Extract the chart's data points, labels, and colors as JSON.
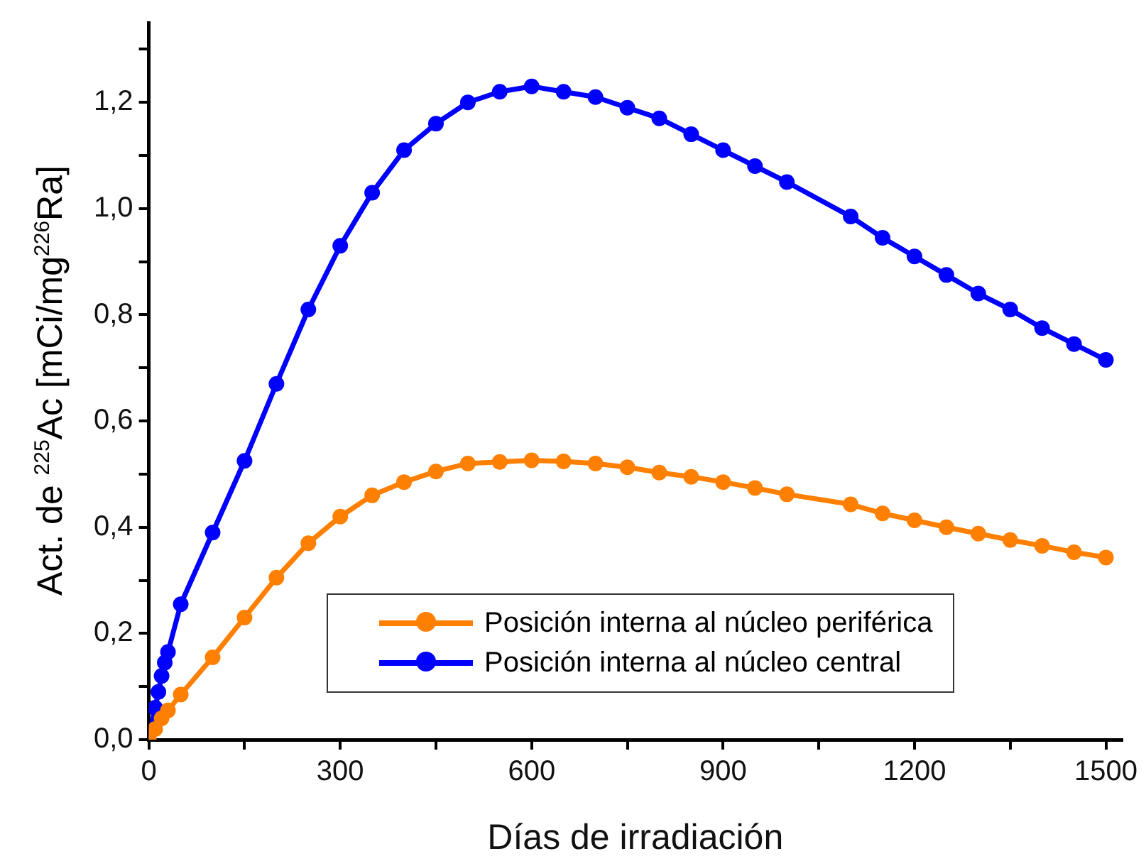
{
  "chart_data": {
    "type": "line",
    "xlabel": "Días de irradiación",
    "ylabel": "Act. de $^{225}$Ac [mCi/mg$^{226}$Ra]",
    "xlim": [
      0,
      1525
    ],
    "ylim": [
      0,
      1.35
    ],
    "xticks": [
      0,
      {
        "value": 150,
        "label": null
      },
      300,
      {
        "value": 450,
        "label": null
      },
      600,
      {
        "value": 750,
        "label": null
      },
      900,
      {
        "value": 1050,
        "label": null
      },
      1200,
      {
        "value": 1350,
        "label": null
      },
      1500
    ],
    "yticks": [
      {
        "value": 0,
        "label": "0,0"
      },
      {
        "value": 0.1,
        "label": null
      },
      {
        "value": 0.2,
        "label": "0,2"
      },
      {
        "value": 0.3,
        "label": null
      },
      {
        "value": 0.4,
        "label": "0,4"
      },
      {
        "value": 0.5,
        "label": null
      },
      {
        "value": 0.6,
        "label": "0,6"
      },
      {
        "value": 0.7,
        "label": null
      },
      {
        "value": 0.8,
        "label": "0,8"
      },
      {
        "value": 0.9,
        "label": null
      },
      {
        "value": 1.0,
        "label": "1,0"
      },
      {
        "value": 1.1,
        "label": null
      },
      {
        "value": 1.2,
        "label": "1,2"
      },
      {
        "value": 1.3,
        "label": null
      }
    ],
    "grid": false,
    "legend": "bottom right",
    "marker": "circle",
    "line_style": "solid",
    "series": [
      {
        "name": "Posición interna al núcleo periférica",
        "color": "#ff8000",
        "x": [
          0,
          10,
          20,
          30,
          50,
          100,
          150,
          200,
          250,
          300,
          350,
          400,
          450,
          500,
          550,
          600,
          650,
          700,
          750,
          800,
          850,
          900,
          950,
          1000,
          1100,
          1150,
          1200,
          1250,
          1300,
          1350,
          1400,
          1450,
          1500
        ],
        "values": [
          0,
          0.02,
          0.04,
          0.055,
          0.085,
          0.155,
          0.23,
          0.305,
          0.37,
          0.42,
          0.46,
          0.485,
          0.505,
          0.52,
          0.523,
          0.526,
          0.524,
          0.52,
          0.513,
          0.503,
          0.495,
          0.485,
          0.474,
          0.462,
          0.443,
          0.426,
          0.413,
          0.4,
          0.388,
          0.376,
          0.365,
          0.353,
          0.343
        ]
      },
      {
        "name": "Posición interna al núcleo central",
        "color": "#0000ff",
        "x": [
          0,
          10,
          15,
          20,
          25,
          30,
          50,
          100,
          150,
          200,
          250,
          300,
          350,
          400,
          450,
          500,
          550,
          600,
          650,
          700,
          750,
          800,
          850,
          900,
          950,
          1000,
          1100,
          1150,
          1200,
          1250,
          1300,
          1350,
          1400,
          1450,
          1500
        ],
        "values": [
          0,
          0.06,
          0.09,
          0.12,
          0.145,
          0.165,
          0.255,
          0.39,
          0.525,
          0.67,
          0.81,
          0.93,
          1.03,
          1.11,
          1.16,
          1.2,
          1.22,
          1.23,
          1.22,
          1.21,
          1.19,
          1.17,
          1.14,
          1.11,
          1.08,
          1.05,
          0.985,
          0.945,
          0.91,
          0.875,
          0.84,
          0.81,
          0.775,
          0.745,
          0.715
        ]
      }
    ]
  }
}
